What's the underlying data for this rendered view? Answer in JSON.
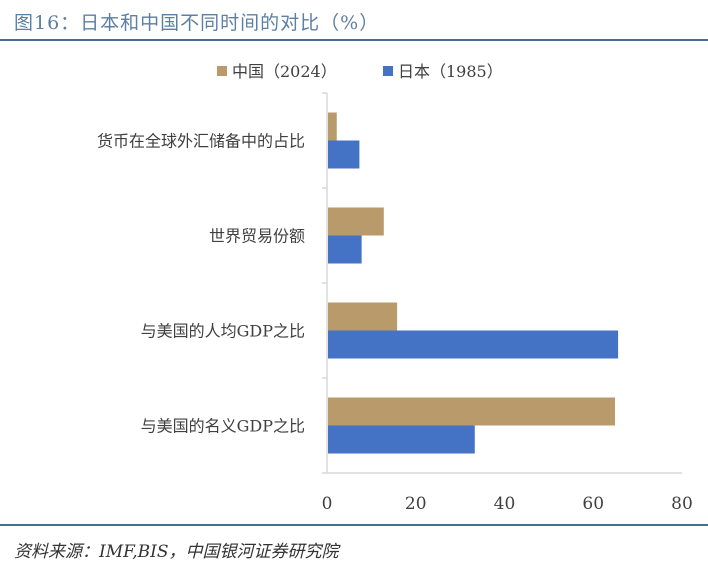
{
  "header": {
    "title": "图16：日本和中国不同时间的对比（%）"
  },
  "footer": {
    "source": "资料来源：IMF,BIS，中国银河证券研究院"
  },
  "colors": {
    "china": "#b89a6b",
    "japan": "#4472c4",
    "axis": "#d9d9d9",
    "rule": "#4a6c93",
    "title": "#5d7fa3"
  },
  "chart_data": {
    "type": "bar",
    "orientation": "horizontal",
    "categories": [
      "货币在全球外汇储备中的占比",
      "世界贸易份额",
      "与美国的人均GDP之比",
      "与美国的名义GDP之比"
    ],
    "series": [
      {
        "name": "中国（2024）",
        "values": [
          2.2,
          12.8,
          15.8,
          64.9
        ]
      },
      {
        "name": "日本（1985）",
        "values": [
          7.3,
          7.8,
          65.6,
          33.3
        ]
      }
    ],
    "xlim": [
      0,
      80
    ],
    "xticks": [
      0,
      20,
      40,
      60,
      80
    ],
    "grid": false,
    "legend_position": "top"
  }
}
